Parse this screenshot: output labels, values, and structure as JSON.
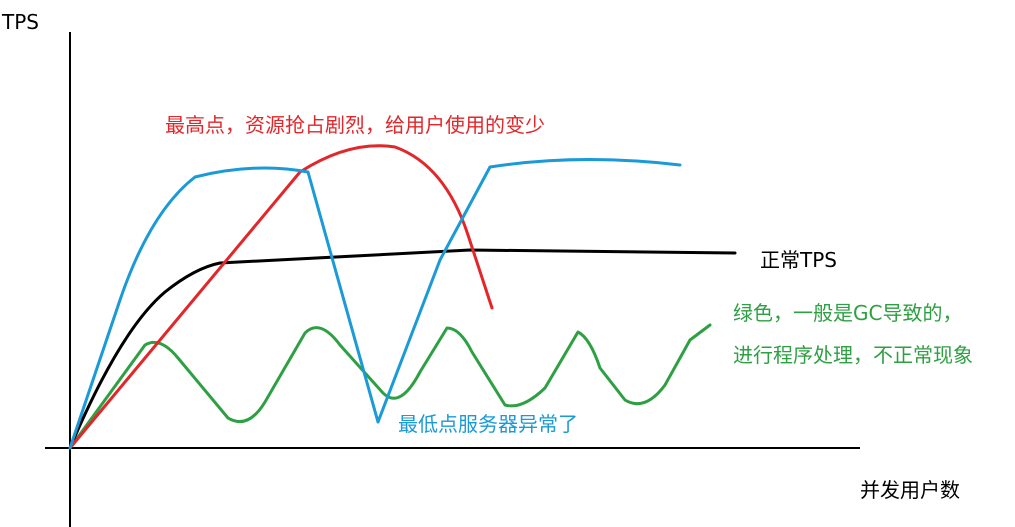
{
  "axes": {
    "y_label": "TPS",
    "x_label": "并发用户数"
  },
  "annotations": {
    "peak": "最高点，资源抢占剧烈，给用户使用的变少",
    "normal": "正常TPS",
    "gc": [
      "绿色，一般是GC导致的，",
      "进行程序处理，不正常现象"
    ],
    "lowest": "最低点服务器异常了"
  }
}
